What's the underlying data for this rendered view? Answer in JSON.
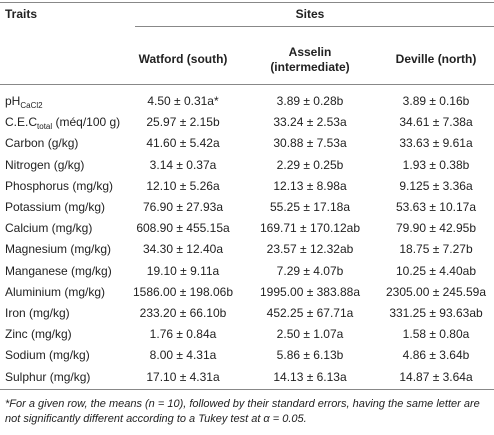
{
  "table": {
    "traits_header": "Traits",
    "sites_header": "Sites",
    "columns": [
      "Watford (south)",
      "Asselin (intermediate)",
      "Deville (north)"
    ],
    "rows": [
      {
        "trait": [
          "pH",
          "CaCl2",
          ""
        ],
        "values": [
          "4.50 ± 0.31a*",
          "3.89 ± 0.28b",
          "3.89 ± 0.16b"
        ]
      },
      {
        "trait": [
          "C.E.C",
          "total",
          " (méq/100 g)"
        ],
        "values": [
          "25.97 ± 2.15b",
          "33.24 ± 2.53a",
          "34.61 ± 7.38a"
        ]
      },
      {
        "trait": [
          "Carbon (g/kg)"
        ],
        "values": [
          "41.60 ± 5.42a",
          "30.88 ± 7.53a",
          "33.63 ± 9.61a"
        ]
      },
      {
        "trait": [
          "Nitrogen (g/kg)"
        ],
        "values": [
          "3.14 ± 0.37a",
          "2.29 ± 0.25b",
          "1.93 ± 0.38b"
        ]
      },
      {
        "trait": [
          "Phosphorus (mg/kg)"
        ],
        "values": [
          "12.10 ± 5.26a",
          "12.13 ± 8.98a",
          "9.125 ± 3.36a"
        ]
      },
      {
        "trait": [
          "Potassium (mg/kg)"
        ],
        "values": [
          "76.90 ± 27.93a",
          "55.25 ± 17.18a",
          "53.63 ± 10.17a"
        ]
      },
      {
        "trait": [
          "Calcium (mg/kg)"
        ],
        "values": [
          "608.90 ± 455.15a",
          "169.71 ± 170.12ab",
          "79.90 ± 42.95b"
        ]
      },
      {
        "trait": [
          "Magnesium (mg/kg)"
        ],
        "values": [
          "34.30 ± 12.40a",
          "23.57 ± 12.32ab",
          "18.75 ± 7.27b"
        ]
      },
      {
        "trait": [
          "Manganese (mg/kg)"
        ],
        "values": [
          "19.10 ± 9.11a",
          "7.29 ± 4.07b",
          "10.25 ± 4.40ab"
        ]
      },
      {
        "trait": [
          "Aluminium (mg/kg)"
        ],
        "values": [
          "1586.00 ± 198.06b",
          "1995.00 ± 383.88a",
          "2305.00 ± 245.59a"
        ]
      },
      {
        "trait": [
          "Iron (mg/kg)"
        ],
        "values": [
          "233.20 ± 66.10b",
          "452.25 ± 67.71a",
          "331.25 ± 93.63ab"
        ]
      },
      {
        "trait": [
          "Zinc (mg/kg)"
        ],
        "values": [
          "1.76 ± 0.84a",
          "2.50 ± 1.07a",
          "1.58 ± 0.80a"
        ]
      },
      {
        "trait": [
          "Sodium (mg/kg)"
        ],
        "values": [
          "8.00 ± 4.31a",
          "5.86 ± 6.13b",
          "4.86 ± 3.64b"
        ]
      },
      {
        "trait": [
          "Sulphur (mg/kg)"
        ],
        "values": [
          "17.10 ± 4.31a",
          "14.13 ± 6.13a",
          "14.87 ± 3.64a"
        ]
      }
    ],
    "footnote": "*For a given row, the means (n = 10), followed by their standard errors, having the same letter are not significantly different according to a Tukey test at α = 0.05."
  }
}
